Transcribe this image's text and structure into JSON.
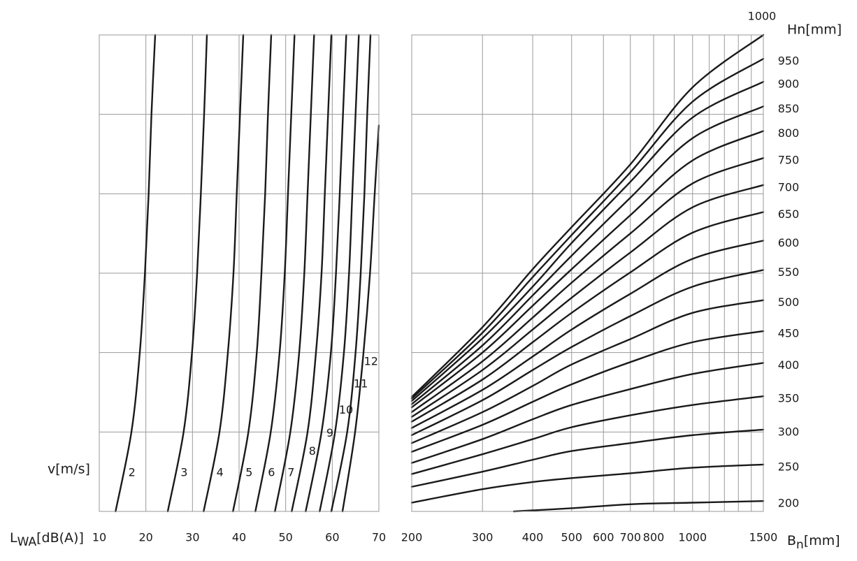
{
  "chart_data": [
    {
      "type": "line",
      "x_label": {
        "main": "L",
        "sub": "WA",
        "rest": "[dB(A)]"
      },
      "y_label": "v[m/s]",
      "xlim": [
        10,
        70
      ],
      "xticks": [
        10,
        20,
        30,
        40,
        50,
        60,
        70
      ],
      "ylim": [
        0,
        6
      ],
      "yticks": [
        0,
        1,
        2,
        3,
        4,
        5,
        6
      ],
      "ytick_labels": false,
      "grid": true,
      "color": "#1a1a1a",
      "series": [
        {
          "name": "2",
          "x": [
            13.5,
            16.9,
            18.7,
            19.8,
            20.6,
            21.2,
            22.0
          ],
          "y": [
            0,
            1,
            2,
            3,
            4,
            5,
            6
          ]
        },
        {
          "name": "3",
          "x": [
            24.7,
            28.1,
            29.9,
            31.0,
            31.8,
            32.5,
            33.1
          ],
          "y": [
            0,
            1,
            2,
            3,
            4,
            5,
            6
          ]
        },
        {
          "name": "4",
          "x": [
            32.4,
            35.8,
            37.6,
            38.8,
            39.5,
            40.2,
            40.9
          ],
          "y": [
            0,
            1,
            2,
            3,
            4,
            5,
            6
          ]
        },
        {
          "name": "5",
          "x": [
            38.7,
            42.0,
            43.8,
            44.8,
            45.6,
            46.2,
            46.9
          ],
          "y": [
            0,
            1,
            2,
            3,
            4,
            5,
            6
          ]
        },
        {
          "name": "6",
          "x": [
            43.5,
            46.8,
            48.7,
            49.8,
            50.5,
            51.2,
            51.9
          ],
          "y": [
            0,
            1,
            2,
            3,
            4,
            5,
            6
          ]
        },
        {
          "name": "7",
          "x": [
            47.7,
            51.0,
            52.9,
            54.0,
            54.7,
            55.4,
            56.1
          ],
          "y": [
            0,
            1,
            2,
            3,
            4,
            5,
            6
          ]
        },
        {
          "name": "8",
          "x": [
            51.3,
            54.7,
            56.5,
            57.7,
            58.4,
            59.1,
            59.8
          ],
          "y": [
            0,
            1,
            2,
            3,
            4,
            5,
            6
          ]
        },
        {
          "name": "9",
          "x": [
            54.3,
            57.7,
            59.7,
            60.8,
            61.6,
            62.3,
            63.0
          ],
          "y": [
            0,
            1,
            2,
            3,
            4,
            5,
            6
          ]
        },
        {
          "name": "10",
          "x": [
            57.3,
            60.6,
            62.5,
            63.6,
            64.3,
            65.0,
            65.7
          ],
          "y": [
            0,
            1,
            2,
            3,
            4,
            5,
            6
          ]
        },
        {
          "name": "11",
          "x": [
            59.8,
            63.2,
            65.0,
            66.1,
            66.9,
            67.5,
            68.2
          ],
          "y": [
            0,
            1,
            2,
            3,
            4,
            5,
            6
          ]
        },
        {
          "name": "12",
          "x": [
            62.2,
            64.9,
            66.7,
            68.1,
            69.1,
            70.0
          ],
          "y": [
            0,
            1,
            2,
            3,
            4,
            4.86
          ]
        }
      ]
    },
    {
      "type": "line",
      "x_label": {
        "main": "B",
        "sub": "n",
        "rest": "[mm]"
      },
      "y_label": "Hn[mm]",
      "xscale": "log",
      "xlim": [
        200,
        1500
      ],
      "xticks": [
        200,
        300,
        400,
        500,
        600,
        700,
        800,
        1000,
        1500
      ],
      "minor_xgrid": [
        900,
        1100,
        1200,
        1300,
        1400
      ],
      "ylim": [
        0,
        6
      ],
      "yticks": [
        0,
        1,
        2,
        3,
        4,
        5,
        6
      ],
      "ytick_labels": false,
      "grid": true,
      "color": "#1a1a1a",
      "series": [
        {
          "name": "200",
          "x": [
            359,
            500,
            700,
            1000,
            1500
          ],
          "y": [
            0,
            0.04,
            0.09,
            0.11,
            0.13
          ]
        },
        {
          "name": "250",
          "x": [
            200,
            300,
            400,
            500,
            700,
            1000,
            1500
          ],
          "y": [
            0.11,
            0.28,
            0.37,
            0.42,
            0.48,
            0.55,
            0.59
          ]
        },
        {
          "name": "300",
          "x": [
            200,
            300,
            400,
            500,
            700,
            1000,
            1500
          ],
          "y": [
            0.31,
            0.5,
            0.65,
            0.76,
            0.86,
            0.96,
            1.03
          ]
        },
        {
          "name": "350",
          "x": [
            200,
            300,
            400,
            500,
            700,
            1000,
            1500
          ],
          "y": [
            0.47,
            0.72,
            0.91,
            1.06,
            1.21,
            1.34,
            1.45
          ]
        },
        {
          "name": "400",
          "x": [
            200,
            300,
            400,
            500,
            700,
            1000,
            1500
          ],
          "y": [
            0.61,
            0.91,
            1.16,
            1.34,
            1.54,
            1.73,
            1.87
          ]
        },
        {
          "name": "450",
          "x": [
            200,
            300,
            400,
            500,
            700,
            1000,
            1500
          ],
          "y": [
            0.75,
            1.09,
            1.38,
            1.6,
            1.88,
            2.13,
            2.27
          ]
        },
        {
          "name": "500",
          "x": [
            200,
            300,
            400,
            500,
            700,
            1000,
            1500
          ],
          "y": [
            0.86,
            1.25,
            1.58,
            1.85,
            2.17,
            2.5,
            2.66
          ]
        },
        {
          "name": "550",
          "x": [
            200,
            300,
            400,
            500,
            700,
            1000,
            1500
          ],
          "y": [
            0.96,
            1.4,
            1.78,
            2.07,
            2.46,
            2.83,
            3.04
          ]
        },
        {
          "name": "600",
          "x": [
            200,
            300,
            400,
            500,
            700,
            1000,
            1500
          ],
          "y": [
            1.05,
            1.53,
            1.95,
            2.29,
            2.74,
            3.18,
            3.41
          ]
        },
        {
          "name": "650",
          "x": [
            200,
            300,
            400,
            500,
            700,
            1000,
            1500
          ],
          "y": [
            1.13,
            1.66,
            2.13,
            2.5,
            3.01,
            3.51,
            3.77
          ]
        },
        {
          "name": "700",
          "x": [
            200,
            300,
            400,
            500,
            700,
            1000,
            1500
          ],
          "y": [
            1.19,
            1.78,
            2.29,
            2.69,
            3.26,
            3.83,
            4.11
          ]
        },
        {
          "name": "750",
          "x": [
            200,
            300,
            400,
            500,
            700,
            1000,
            1500
          ],
          "y": [
            1.25,
            1.89,
            2.44,
            2.88,
            3.5,
            4.13,
            4.45
          ]
        },
        {
          "name": "800",
          "x": [
            200,
            300,
            400,
            500,
            700,
            1000,
            1500
          ],
          "y": [
            1.31,
            2.0,
            2.59,
            3.05,
            3.73,
            4.42,
            4.79
          ]
        },
        {
          "name": "850",
          "x": [
            200,
            300,
            400,
            500,
            700,
            1000,
            1500
          ],
          "y": [
            1.35,
            2.09,
            2.72,
            3.22,
            3.95,
            4.7,
            5.1
          ]
        },
        {
          "name": "900",
          "x": [
            200,
            300,
            400,
            500,
            700,
            1000,
            1500
          ],
          "y": [
            1.39,
            2.18,
            2.83,
            3.38,
            4.15,
            4.96,
            5.41
          ]
        },
        {
          "name": "950",
          "x": [
            200,
            300,
            400,
            500,
            700,
            1000,
            1500
          ],
          "y": [
            1.42,
            2.25,
            2.95,
            3.48,
            4.27,
            5.16,
            5.7
          ]
        },
        {
          "name": "1000",
          "x": [
            200,
            300,
            400,
            500,
            700,
            1000,
            1500
          ],
          "y": [
            1.44,
            2.32,
            3.05,
            3.58,
            4.37,
            5.34,
            6.0
          ]
        }
      ]
    }
  ]
}
